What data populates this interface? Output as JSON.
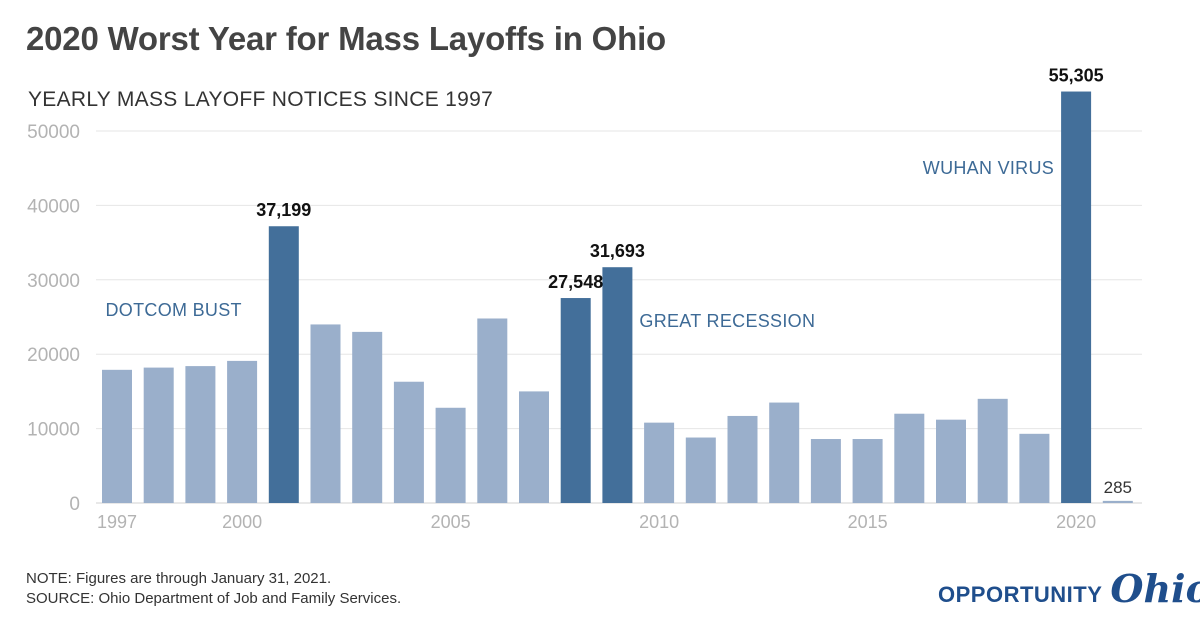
{
  "header": {
    "title": "2020 Worst Year for Mass Layoffs in Ohio",
    "subtitle": "YEARLY MASS LAYOFF NOTICES SINCE 1997"
  },
  "footer": {
    "note": "NOTE: Figures are through January 31, 2021.",
    "source": "SOURCE: Ohio Department of Job and Family Services."
  },
  "logo": {
    "word1": "OPPORTUNITY",
    "word2": "Ohio"
  },
  "colors": {
    "highlight": "#436f9a",
    "normal": "#9aafcb",
    "annotation": "#3d6a96",
    "grid": "#e6e6e6",
    "tick": "#b3b3b3"
  },
  "chart_data": {
    "type": "bar",
    "categories": [
      "1997",
      "1998",
      "1999",
      "2000",
      "2001",
      "2002",
      "2003",
      "2004",
      "2005",
      "2006",
      "2007",
      "2008",
      "2009",
      "2010",
      "2011",
      "2012",
      "2013",
      "2014",
      "2015",
      "2016",
      "2017",
      "2018",
      "2019",
      "2020",
      "2021"
    ],
    "values": [
      17900,
      18200,
      18400,
      19100,
      37199,
      24000,
      23000,
      16300,
      12800,
      24800,
      15000,
      27548,
      31693,
      10800,
      8800,
      11700,
      13500,
      8600,
      8600,
      12000,
      11200,
      14000,
      9300,
      55305,
      285
    ],
    "highlighted": [
      "2001",
      "2008",
      "2009",
      "2020"
    ],
    "value_labels": [
      {
        "category": "2001",
        "text": "37,199"
      },
      {
        "category": "2008",
        "text": "27,548"
      },
      {
        "category": "2009",
        "text": "31,693"
      },
      {
        "category": "2020",
        "text": "55,305"
      },
      {
        "category": "2021",
        "text": "285"
      }
    ],
    "annotations": [
      {
        "text": "DOTCOM BUST",
        "near": "2001"
      },
      {
        "text": "GREAT RECESSION",
        "near": "2009"
      },
      {
        "text": "WUHAN VIRUS",
        "near": "2020"
      }
    ],
    "x_ticks": [
      "1997",
      "2000",
      "2005",
      "2010",
      "2015",
      "2020"
    ],
    "y_ticks": [
      0,
      10000,
      20000,
      30000,
      40000,
      50000
    ],
    "ylim": [
      0,
      55305
    ],
    "grid": true,
    "legend": "none"
  }
}
